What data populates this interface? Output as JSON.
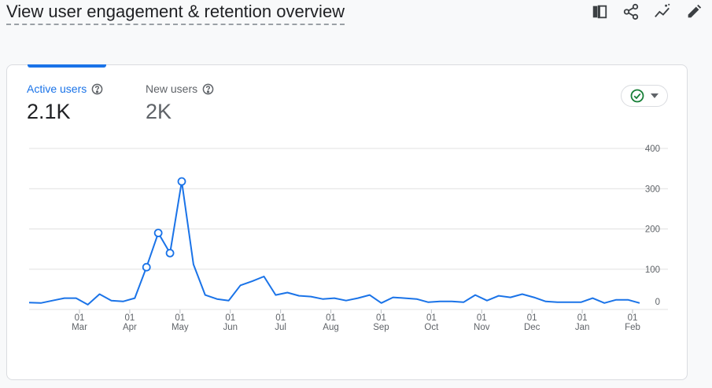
{
  "header": {
    "title": "View user engagement & retention overview",
    "icons": [
      "compare-icon",
      "share-icon",
      "insights-icon",
      "edit-icon"
    ]
  },
  "metrics": [
    {
      "label": "Active users",
      "value": "2.1K"
    },
    {
      "label": "New users",
      "value": "2K"
    }
  ],
  "status_chip": {
    "icon": "check-circle-icon",
    "color": "#188038"
  },
  "colors": {
    "accent": "#1a73e8",
    "grid": "#e0e0e0",
    "text_muted": "#5f6368"
  },
  "chart_data": {
    "type": "line",
    "y_ticks": [
      "400",
      "300",
      "200",
      "100",
      "0"
    ],
    "ylim": [
      0,
      400
    ],
    "x_tick_labels": [
      {
        "day": "01",
        "month": "Mar"
      },
      {
        "day": "01",
        "month": "Apr"
      },
      {
        "day": "01",
        "month": "May"
      },
      {
        "day": "01",
        "month": "Jun"
      },
      {
        "day": "01",
        "month": "Jul"
      },
      {
        "day": "01",
        "month": "Aug"
      },
      {
        "day": "01",
        "month": "Sep"
      },
      {
        "day": "01",
        "month": "Oct"
      },
      {
        "day": "01",
        "month": "Nov"
      },
      {
        "day": "01",
        "month": "Dec"
      },
      {
        "day": "01",
        "month": "Jan"
      },
      {
        "day": "01",
        "month": "Feb"
      }
    ],
    "series": [
      {
        "values": [
          17,
          16,
          22,
          28,
          28,
          12,
          38,
          22,
          20,
          28,
          105,
          190,
          140,
          318,
          112,
          36,
          26,
          22,
          60,
          70,
          82,
          36,
          42,
          34,
          32,
          26,
          28,
          22,
          28,
          36,
          16,
          30,
          28,
          26,
          18,
          20,
          20,
          18,
          36,
          22,
          34,
          30,
          38,
          30,
          20,
          18,
          18,
          18,
          28,
          16,
          24,
          24,
          16
        ],
        "markers": [
          10,
          11,
          12,
          13
        ]
      }
    ]
  }
}
